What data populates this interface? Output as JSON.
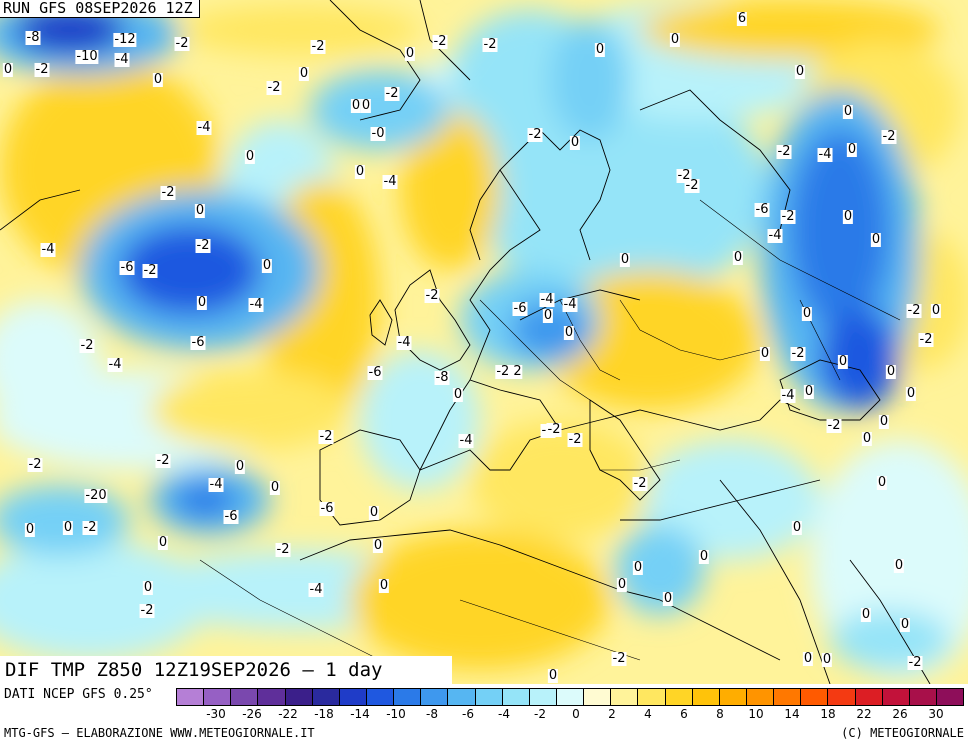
{
  "header": {
    "run_title": "RUN GFS 08SEP2026 12Z",
    "field_title": "DIF TMP Z850 12Z19SEP2026 — 1 day"
  },
  "legend": {
    "source_label": "DATI NCEP GFS 0.25°",
    "swatch_colors": [
      "#b57fd6",
      "#9660c4",
      "#7a48ae",
      "#5f2f9a",
      "#3b1f8a",
      "#2a2a9e",
      "#1f3cc8",
      "#1f58e0",
      "#2b7ae8",
      "#3e98ee",
      "#56b6f2",
      "#74d0f6",
      "#95e4f8",
      "#b8f2fa",
      "#dcfbfb",
      "#fffbd2",
      "#fff39a",
      "#ffe760",
      "#ffd526",
      "#ffc30a",
      "#ffad00",
      "#ff9400",
      "#ff7800",
      "#ff5a00",
      "#f43a12",
      "#dc1e24",
      "#c2123a",
      "#a8104a",
      "#8e0e5a"
    ],
    "tick_labels": [
      "-30",
      "-26",
      "-22",
      "-18",
      "-14",
      "-10",
      "-8",
      "-6",
      "-4",
      "-2",
      "0",
      "2",
      "4",
      "6",
      "8",
      "10",
      "14",
      "18",
      "22",
      "26",
      "30"
    ]
  },
  "map": {
    "contour_labels": [
      "-8",
      "-12",
      "-2",
      "-10",
      "-4",
      "-2",
      "0",
      "0",
      "-2",
      "0",
      "-2",
      "-2",
      "0",
      "0",
      "0",
      "-2",
      "0",
      "-2",
      "0",
      "-0",
      "-4",
      "0",
      "0",
      "-4",
      "-2",
      "0",
      "-2",
      "-2",
      "-2",
      "0",
      "-2",
      "-2",
      "-6",
      "-4",
      "0",
      "-4",
      "0",
      "-6",
      "-2",
      "-4",
      "0",
      "-2",
      "-6",
      "-4",
      "0",
      "0",
      "-2 2",
      "-4",
      "-4",
      "-6",
      "-8",
      "0",
      "-4",
      "-2",
      "-2",
      "-4",
      "-2",
      "-2",
      "-2",
      "0",
      "-4",
      "-6",
      "0",
      "-20",
      "0",
      "-2",
      "0",
      "0",
      "-6",
      "0",
      "0",
      "-2",
      "-4",
      "0",
      "0",
      "-2",
      "-2",
      "0",
      "0",
      "0",
      "0",
      "0",
      "-2",
      "-2",
      "0",
      "-4",
      "0",
      "-6",
      "-2",
      "0",
      "-4",
      "0",
      "0",
      "0",
      "-2",
      "-2",
      "0",
      "0",
      "0",
      "0",
      "-2",
      "-4",
      "0",
      "0",
      "-2",
      "0",
      "0",
      "0",
      "0",
      "0",
      "0",
      "0",
      "0",
      "-2",
      "-2",
      "0",
      "6",
      "0"
    ]
  },
  "footer": {
    "left": "MTG-GFS — ELABORAZIONE WWW.METEOGIORNALE.IT",
    "right": "(C) METEOGIORNALE"
  }
}
